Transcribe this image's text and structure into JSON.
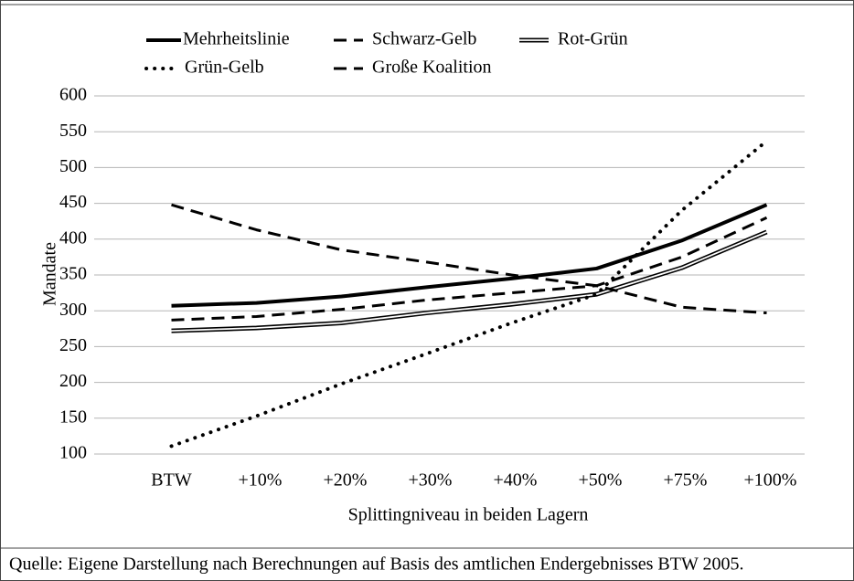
{
  "chart_data": {
    "type": "line",
    "categories": [
      "BTW",
      "+10%",
      "+20%",
      "+30%",
      "+40%",
      "+50%",
      "+75%",
      "+100%"
    ],
    "series": [
      {
        "name": "Mehrheitslinie",
        "color": "#000000",
        "style": "solid",
        "values": [
          307,
          311,
          320,
          333,
          345,
          359,
          398,
          448
        ]
      },
      {
        "name": "Schwarz-Gelb",
        "color": "#000000",
        "style": "dashed",
        "values": [
          287,
          292,
          302,
          315,
          325,
          335,
          375,
          430
        ]
      },
      {
        "name": "Rot-Grün",
        "color": "#000000",
        "style": "double",
        "values": [
          272,
          276,
          283,
          297,
          309,
          323,
          360,
          410
        ]
      },
      {
        "name": "Grün-Gelb",
        "color": "#000000",
        "style": "dotted",
        "values": [
          111,
          153,
          198,
          240,
          283,
          323,
          440,
          537
        ]
      },
      {
        "name": "Große Koalition",
        "color": "#000000",
        "style": "dashed",
        "values": [
          448,
          413,
          385,
          368,
          350,
          335,
          305,
          297
        ]
      }
    ],
    "ylabel": "Mandate",
    "xlabel": "Splittingniveau in beiden Lagern",
    "ylim": [
      100,
      600
    ],
    "yticks": [
      100,
      150,
      200,
      250,
      300,
      350,
      400,
      450,
      500,
      550,
      600
    ],
    "grid": true
  },
  "source": "Quelle: Eigene Darstellung nach Berechnungen auf Basis des amtlichen Endergebnisses BTW 2005."
}
